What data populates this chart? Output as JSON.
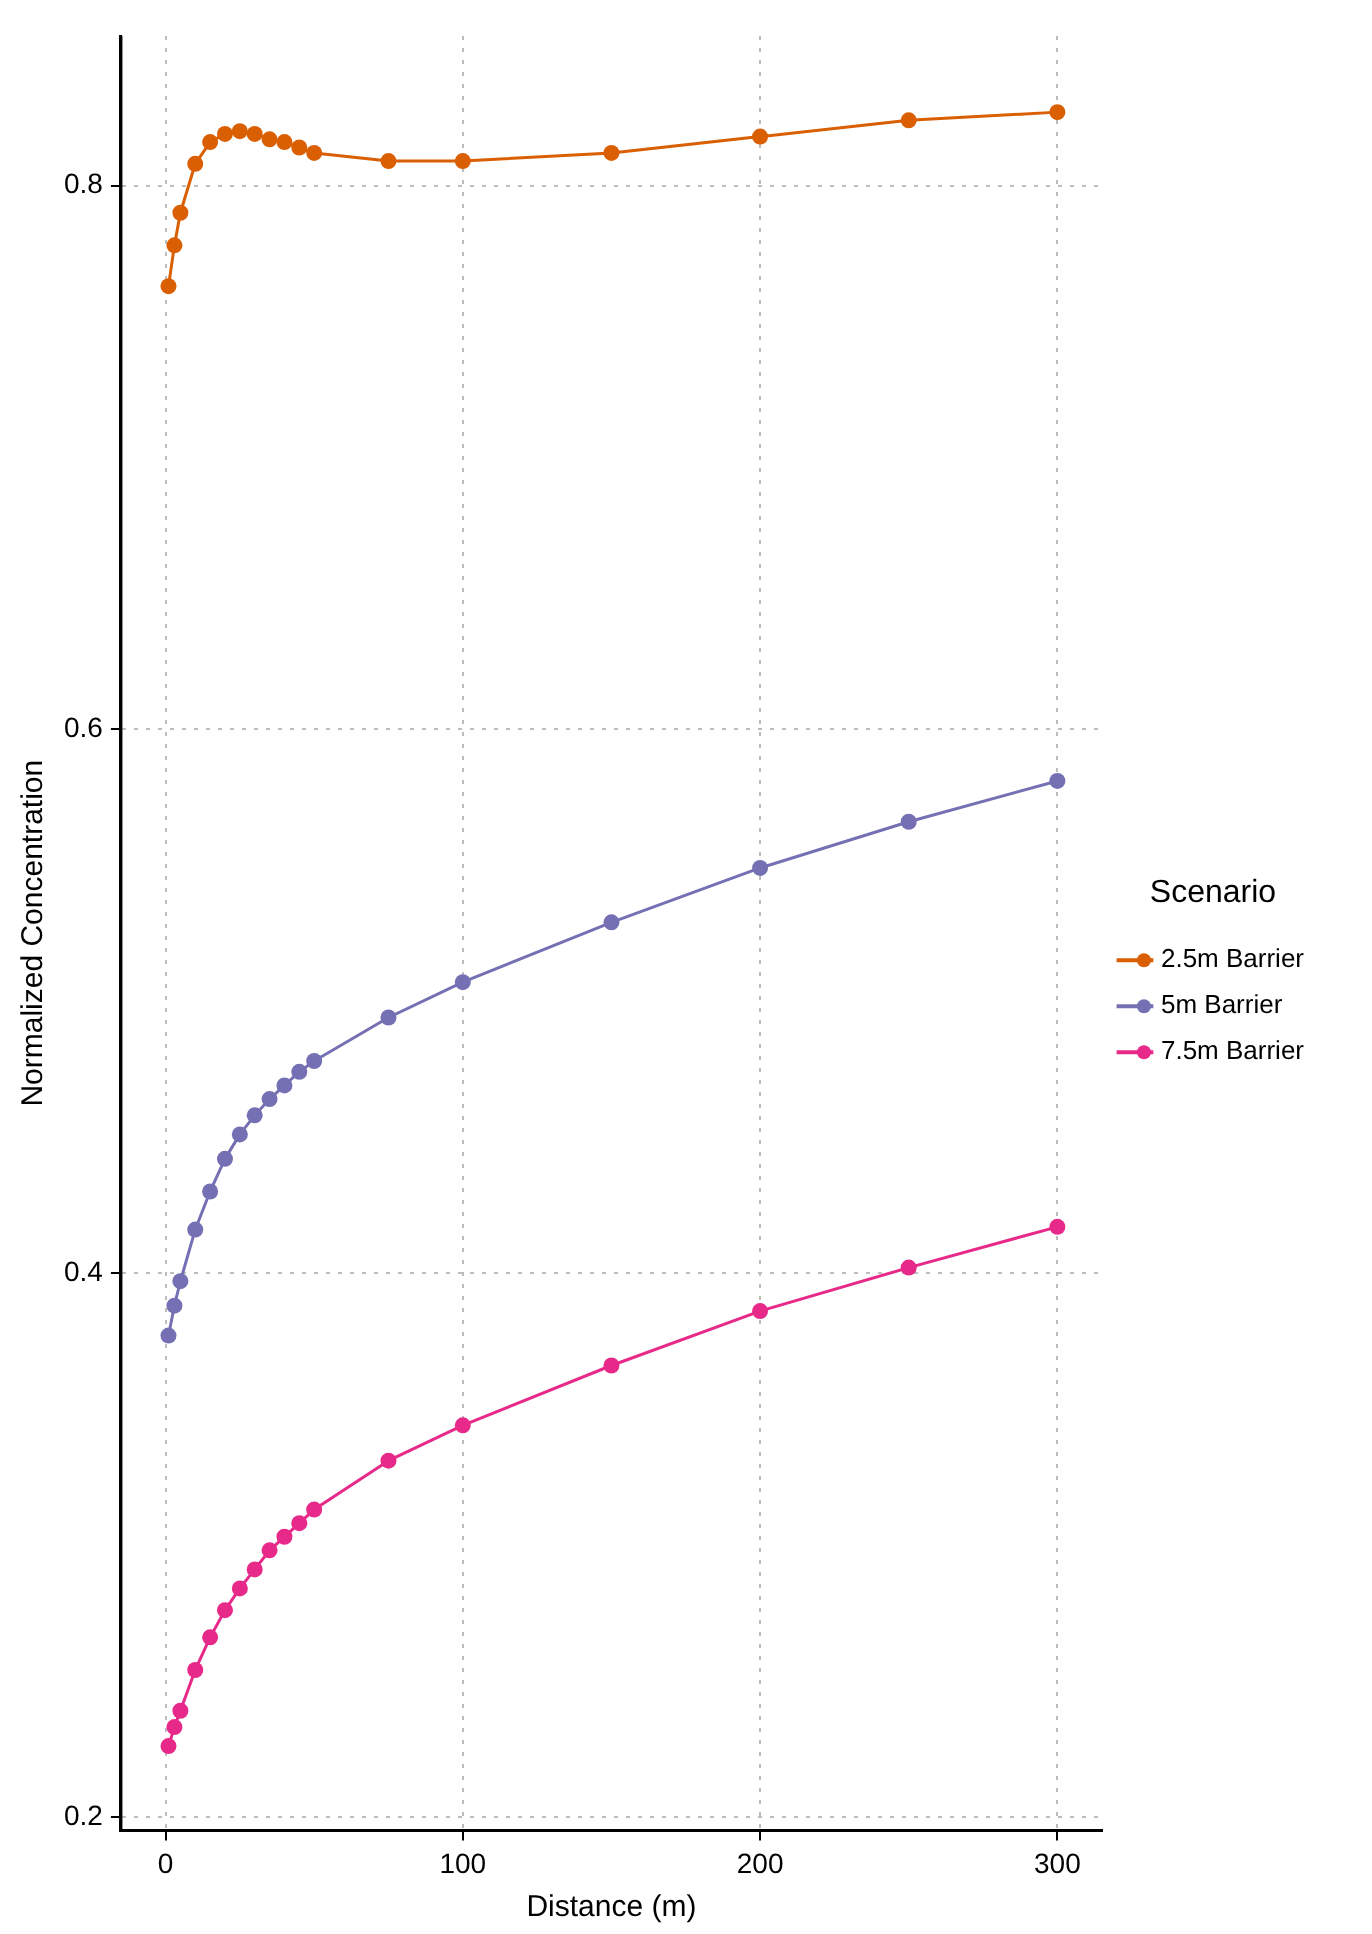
{
  "chart_data": {
    "type": "line",
    "xlabel": "Distance (m)",
    "ylabel": "Normalized Concentration",
    "legend_title": "Scenario",
    "legend": "right",
    "grid": true,
    "marker": "circle",
    "line_style": "solid",
    "x": [
      1,
      3,
      5,
      10,
      15,
      20,
      25,
      30,
      35,
      40,
      45,
      50,
      75,
      100,
      150,
      200,
      250,
      300
    ],
    "xlim": [
      -15,
      315
    ],
    "xticks": [
      0,
      100,
      200,
      300
    ],
    "ylim": [
      0.195,
      0.855
    ],
    "yticks": [
      0.2,
      0.4,
      0.6,
      0.8
    ],
    "series": [
      {
        "name": "2.5m Barrier",
        "color": "#d95f02",
        "values": [
          0.763,
          0.778,
          0.79,
          0.808,
          0.816,
          0.819,
          0.82,
          0.819,
          0.817,
          0.816,
          0.814,
          0.812,
          0.809,
          0.809,
          0.812,
          0.818,
          0.824,
          0.827
        ]
      },
      {
        "name": "5m Barrier",
        "color": "#7570b3",
        "values": [
          0.377,
          0.388,
          0.397,
          0.416,
          0.43,
          0.442,
          0.451,
          0.458,
          0.464,
          0.469,
          0.474,
          0.478,
          0.494,
          0.507,
          0.529,
          0.549,
          0.566,
          0.581
        ]
      },
      {
        "name": "7.5m Barrier",
        "color": "#e7298a",
        "values": [
          0.226,
          0.233,
          0.239,
          0.254,
          0.266,
          0.276,
          0.284,
          0.291,
          0.298,
          0.303,
          0.308,
          0.313,
          0.331,
          0.344,
          0.366,
          0.386,
          0.402,
          0.417
        ]
      }
    ]
  }
}
